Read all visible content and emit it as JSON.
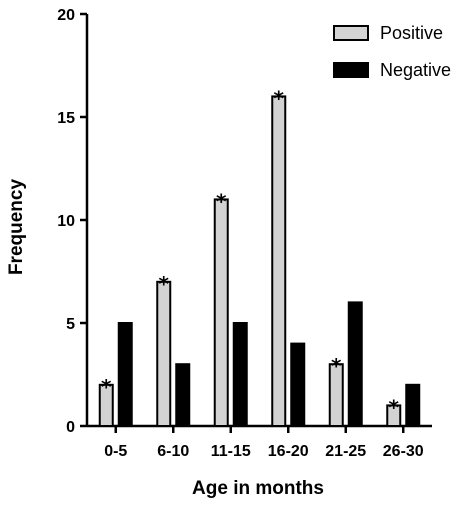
{
  "chart_data": {
    "type": "bar",
    "title": "",
    "xlabel": "Age in months",
    "ylabel": "Frequency",
    "categories": [
      "0-5",
      "6-10",
      "11-15",
      "16-20",
      "21-25",
      "26-30"
    ],
    "series": [
      {
        "name": "Positive",
        "values": [
          2,
          7,
          11,
          16,
          3,
          1
        ],
        "color": "#d3d3d3",
        "marker": "asterisk"
      },
      {
        "name": "Negative",
        "values": [
          5,
          3,
          5,
          4,
          6,
          2
        ],
        "color": "#000000"
      }
    ],
    "ylim": [
      0,
      20
    ],
    "yticks": [
      0,
      5,
      10,
      15,
      20
    ],
    "grid": false,
    "legend_position": "top-right"
  }
}
